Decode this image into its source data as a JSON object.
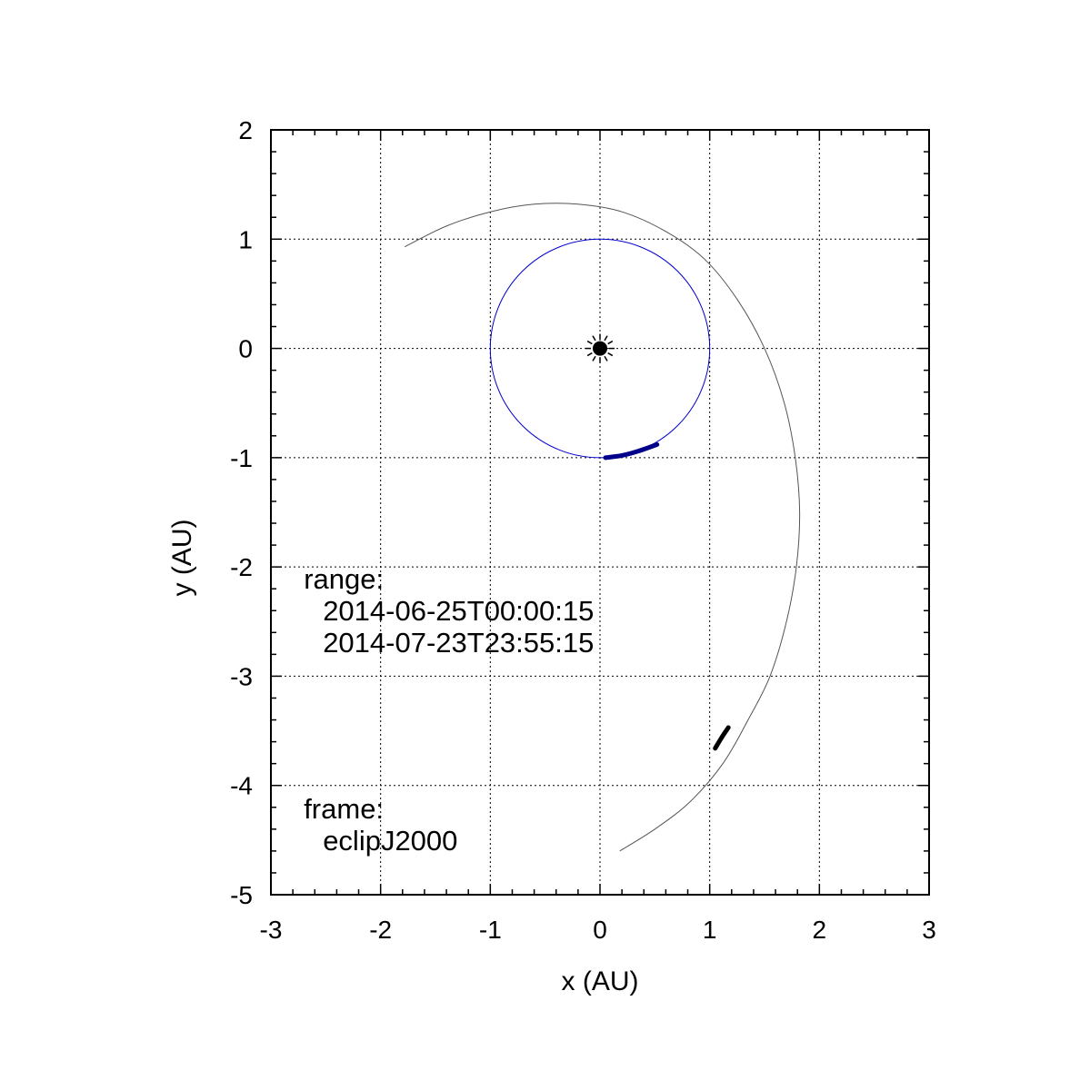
{
  "chart_data": {
    "type": "line",
    "xlabel": "x (AU)",
    "ylabel": "y (AU)",
    "xlim": [
      -3,
      3
    ],
    "ylim": [
      -5,
      2
    ],
    "xticks": [
      "-3",
      "-2",
      "-1",
      "0",
      "1",
      "2",
      "3"
    ],
    "yticks": [
      "2",
      "1",
      "0",
      "-1",
      "-2",
      "-3",
      "-4",
      "-5"
    ],
    "grid": true,
    "center_marker": {
      "x": 0,
      "y": 0,
      "symbol": "sun"
    },
    "series": [
      {
        "kind": "orbit",
        "color": "#0000cc",
        "points": [
          [
            1.0,
            0.0
          ],
          [
            0.866,
            0.5
          ],
          [
            0.5,
            0.866
          ],
          [
            0.0,
            1.0
          ],
          [
            -0.5,
            0.866
          ],
          [
            -0.866,
            0.5
          ],
          [
            -1.0,
            0.0
          ],
          [
            -0.866,
            -0.5
          ],
          [
            -0.5,
            -0.866
          ],
          [
            0.0,
            -1.0
          ],
          [
            0.5,
            -0.866
          ],
          [
            0.866,
            -0.5
          ],
          [
            1.0,
            0.0
          ]
        ]
      },
      {
        "kind": "orbit",
        "color": "#555555",
        "points": [
          [
            -1.78,
            0.93
          ],
          [
            -1.4,
            1.12
          ],
          [
            -1.0,
            1.25
          ],
          [
            -0.6,
            1.32
          ],
          [
            -0.2,
            1.32
          ],
          [
            0.2,
            1.25
          ],
          [
            0.6,
            1.07
          ],
          [
            0.95,
            0.82
          ],
          [
            1.25,
            0.45
          ],
          [
            1.5,
            0.0
          ],
          [
            1.68,
            -0.5
          ],
          [
            1.78,
            -1.0
          ],
          [
            1.82,
            -1.5
          ],
          [
            1.79,
            -2.0
          ],
          [
            1.7,
            -2.5
          ],
          [
            1.55,
            -3.0
          ],
          [
            1.35,
            -3.4
          ],
          [
            1.12,
            -3.8
          ],
          [
            0.82,
            -4.15
          ],
          [
            0.5,
            -4.4
          ],
          [
            0.18,
            -4.6
          ]
        ]
      },
      {
        "kind": "segment",
        "color": "#00008b",
        "points": [
          [
            0.05,
            -1.0
          ],
          [
            0.2,
            -0.98
          ],
          [
            0.35,
            -0.94
          ],
          [
            0.52,
            -0.88
          ]
        ]
      },
      {
        "kind": "segment",
        "color": "#000000",
        "points": [
          [
            1.05,
            -3.66
          ],
          [
            1.11,
            -3.56
          ],
          [
            1.17,
            -3.47
          ]
        ]
      }
    ],
    "annotations": [
      {
        "lines": [
          "range:",
          "  2014-06-25T00:00:15",
          "  2014-07-23T23:55:15"
        ],
        "x": -2.7,
        "y": -2.2
      },
      {
        "lines": [
          "frame:",
          "  eclipJ2000"
        ],
        "x": -2.7,
        "y": -4.3
      }
    ]
  }
}
